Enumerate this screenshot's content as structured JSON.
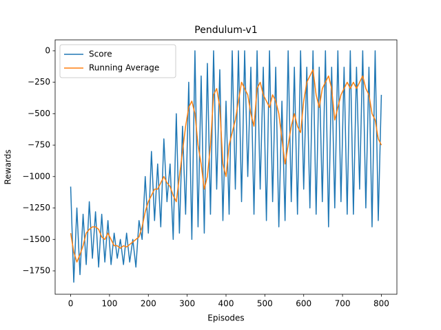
{
  "chart_data": {
    "type": "line",
    "title": "Pendulum-v1",
    "x_label": "Episodes",
    "y_label": "Rewards",
    "x": [
      0,
      8,
      16,
      24,
      32,
      40,
      48,
      56,
      64,
      72,
      80,
      88,
      96,
      104,
      112,
      120,
      128,
      136,
      144,
      152,
      160,
      168,
      176,
      184,
      192,
      200,
      208,
      216,
      224,
      232,
      240,
      248,
      256,
      264,
      272,
      280,
      288,
      296,
      304,
      312,
      320,
      328,
      336,
      344,
      352,
      360,
      368,
      376,
      384,
      392,
      400,
      408,
      416,
      424,
      432,
      440,
      448,
      456,
      464,
      472,
      480,
      488,
      496,
      504,
      512,
      520,
      528,
      536,
      544,
      552,
      560,
      568,
      576,
      584,
      592,
      600,
      608,
      616,
      624,
      632,
      640,
      648,
      656,
      664,
      672,
      680,
      688,
      696,
      704,
      712,
      720,
      728,
      736,
      744,
      752,
      760,
      768,
      776,
      784,
      792,
      800
    ],
    "series": [
      {
        "name": "Score",
        "color": "#1f77b4",
        "values": [
          -1080,
          -1840,
          -1250,
          -1780,
          -1300,
          -1700,
          -1200,
          -1650,
          -1280,
          -1720,
          -1300,
          -1680,
          -1350,
          -1700,
          -1450,
          -1650,
          -1500,
          -1700,
          -1450,
          -1680,
          -1500,
          -1720,
          -1350,
          -1500,
          -1000,
          -1450,
          -800,
          -1350,
          -900,
          -1400,
          -700,
          -1200,
          -900,
          -1500,
          -500,
          -1450,
          -600,
          -1300,
          -250,
          -1500,
          0,
          -1400,
          -200,
          -1450,
          -100,
          -1300,
          0,
          -1100,
          -150,
          -1350,
          -400,
          -1300,
          0,
          -1100,
          0,
          -1200,
          0,
          -1000,
          -130,
          -1300,
          0,
          -1100,
          -130,
          -1350,
          0,
          -1200,
          -130,
          -1400,
          -400,
          -1350,
          0,
          -1200,
          -130,
          -1300,
          0,
          -1100,
          -130,
          -1250,
          0,
          -1300,
          -130,
          -1200,
          0,
          -1400,
          -130,
          -1250,
          0,
          -1200,
          -130,
          -1300,
          0,
          -1300,
          -130,
          -1100,
          0,
          -1250,
          -130,
          -1400,
          0,
          -1350,
          -350
        ]
      },
      {
        "name": "Running Average",
        "color": "#ff7f0e",
        "values": [
          -1450,
          -1600,
          -1680,
          -1620,
          -1550,
          -1450,
          -1420,
          -1400,
          -1400,
          -1420,
          -1480,
          -1500,
          -1450,
          -1500,
          -1550,
          -1550,
          -1570,
          -1550,
          -1560,
          -1540,
          -1520,
          -1500,
          -1480,
          -1400,
          -1280,
          -1200,
          -1150,
          -1100,
          -1100,
          -1050,
          -1000,
          -1050,
          -1080,
          -1150,
          -1200,
          -1000,
          -800,
          -600,
          -450,
          -400,
          -500,
          -750,
          -900,
          -1100,
          -1000,
          -750,
          -350,
          -300,
          -450,
          -900,
          -1000,
          -750,
          -650,
          -550,
          -400,
          -250,
          -300,
          -350,
          -500,
          -600,
          -300,
          -250,
          -350,
          -400,
          -450,
          -350,
          -400,
          -500,
          -700,
          -900,
          -750,
          -600,
          -500,
          -600,
          -650,
          -400,
          -250,
          -200,
          -150,
          -350,
          -450,
          -300,
          -250,
          -200,
          -300,
          -550,
          -450,
          -350,
          -300,
          -250,
          -300,
          -250,
          -300,
          -250,
          -200,
          -300,
          -350,
          -500,
          -550,
          -700,
          -750
        ]
      }
    ],
    "xlim": [
      -40,
      840
    ],
    "ylim": [
      -1936,
      87
    ],
    "xticks": [
      0,
      100,
      200,
      300,
      400,
      500,
      600,
      700,
      800
    ],
    "yticks": [
      {
        "value": 0,
        "label": "0"
      },
      {
        "value": -250,
        "label": "−250"
      },
      {
        "value": -500,
        "label": "−500"
      },
      {
        "value": -750,
        "label": "−750"
      },
      {
        "value": -1000,
        "label": "−1000"
      },
      {
        "value": -1250,
        "label": "−1250"
      },
      {
        "value": -1500,
        "label": "−1500"
      },
      {
        "value": -1750,
        "label": "−1750"
      }
    ],
    "legend": "upper left",
    "grid": false
  }
}
